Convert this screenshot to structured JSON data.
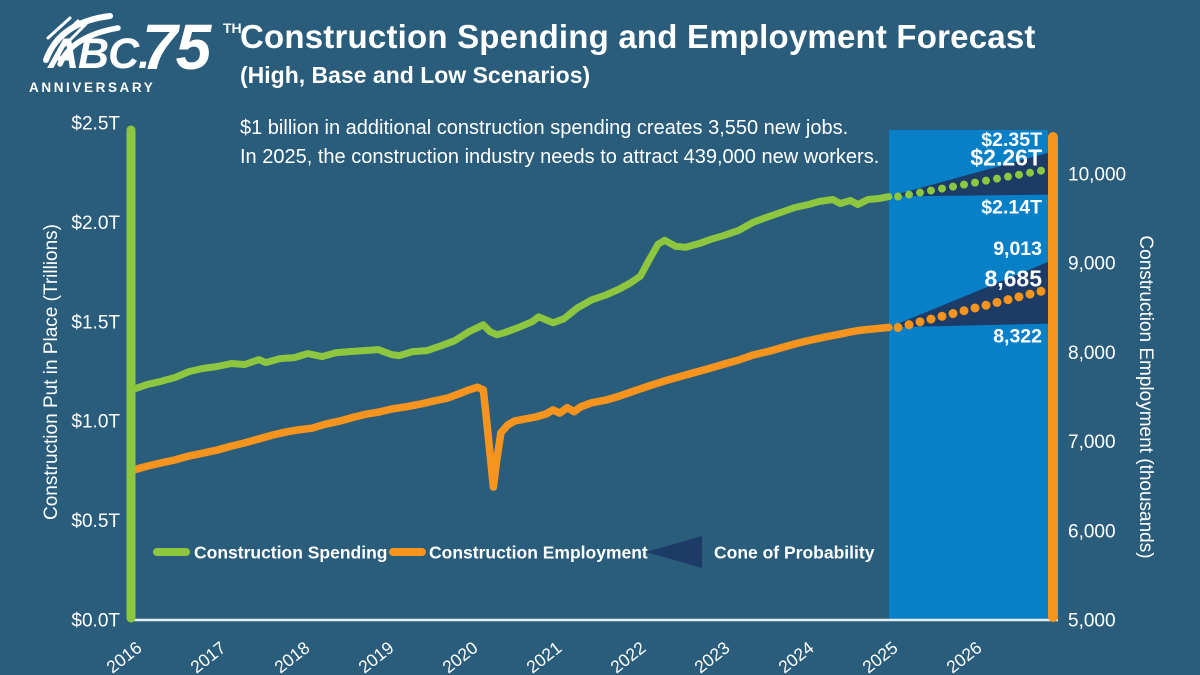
{
  "logo": {
    "abc": "ABC.",
    "number": "75",
    "suffix": "TH",
    "anniversary": "ANNIVERSARY"
  },
  "colors": {
    "background": "#2A5D7C",
    "forecast_region_blue": "#0780C8",
    "cone_navy": "#1C3B66",
    "spending_green": "#8DC63F",
    "employment_orange": "#F7941E",
    "axis_white": "#E6EDF2",
    "text_white": "#FFFFFF"
  },
  "chart_data": {
    "type": "line",
    "title": "Construction Spending and Employment Forecast",
    "subtitle": "(High, Base and Low Scenarios)",
    "annotations": [
      "$1 billion in additional construction spending creates 3,550 new jobs.",
      "In 2025, the construction industry needs to attract 439,000 new workers."
    ],
    "left_axis": {
      "label": "Construction Put in Place (Trillions)",
      "range": [
        0,
        2.5
      ],
      "ticks": [
        [
          0,
          "$0.0T"
        ],
        [
          0.5,
          "$0.5T"
        ],
        [
          1.0,
          "$1.0T"
        ],
        [
          1.5,
          "$1.5T"
        ],
        [
          2.0,
          "$2.0T"
        ],
        [
          2.5,
          "$2.5T"
        ]
      ]
    },
    "right_axis": {
      "label": "Construction Employment (thousands)",
      "range": [
        5000,
        10000
      ],
      "ticks": [
        [
          5000,
          "5,000"
        ],
        [
          6000,
          "6,000"
        ],
        [
          7000,
          "7,000"
        ],
        [
          8000,
          "8,000"
        ],
        [
          9000,
          "9,000"
        ],
        [
          10000,
          "10,000"
        ]
      ]
    },
    "x_axis": {
      "range": [
        2016,
        2026.9
      ],
      "ticks": [
        [
          2016,
          "2016"
        ],
        [
          2017,
          "2017"
        ],
        [
          2018,
          "2018"
        ],
        [
          2019,
          "2019"
        ],
        [
          2020,
          "2020"
        ],
        [
          2021,
          "2021"
        ],
        [
          2022,
          "2022"
        ],
        [
          2023,
          "2023"
        ],
        [
          2024,
          "2024"
        ],
        [
          2025,
          "2025"
        ],
        [
          2026,
          "2026"
        ]
      ]
    },
    "forecast_region": {
      "start": 2025,
      "end": 2026.9
    },
    "series": [
      {
        "name": "Construction Spending",
        "axis": "left",
        "color": "#8DC63F",
        "points": [
          [
            2016.0,
            1.16
          ],
          [
            2016.17,
            1.185
          ],
          [
            2016.33,
            1.2
          ],
          [
            2016.5,
            1.22
          ],
          [
            2016.67,
            1.25
          ],
          [
            2016.83,
            1.265
          ],
          [
            2017.0,
            1.275
          ],
          [
            2017.17,
            1.29
          ],
          [
            2017.33,
            1.285
          ],
          [
            2017.5,
            1.31
          ],
          [
            2017.58,
            1.295
          ],
          [
            2017.75,
            1.315
          ],
          [
            2017.92,
            1.32
          ],
          [
            2018.08,
            1.34
          ],
          [
            2018.25,
            1.325
          ],
          [
            2018.42,
            1.345
          ],
          [
            2018.58,
            1.35
          ],
          [
            2018.75,
            1.355
          ],
          [
            2018.92,
            1.36
          ],
          [
            2019.08,
            1.335
          ],
          [
            2019.17,
            1.33
          ],
          [
            2019.33,
            1.35
          ],
          [
            2019.5,
            1.355
          ],
          [
            2019.67,
            1.38
          ],
          [
            2019.83,
            1.405
          ],
          [
            2020.0,
            1.45
          ],
          [
            2020.17,
            1.485
          ],
          [
            2020.25,
            1.45
          ],
          [
            2020.33,
            1.435
          ],
          [
            2020.42,
            1.445
          ],
          [
            2020.58,
            1.47
          ],
          [
            2020.75,
            1.5
          ],
          [
            2020.83,
            1.525
          ],
          [
            2021.0,
            1.495
          ],
          [
            2021.13,
            1.515
          ],
          [
            2021.29,
            1.57
          ],
          [
            2021.46,
            1.61
          ],
          [
            2021.63,
            1.635
          ],
          [
            2021.79,
            1.665
          ],
          [
            2021.92,
            1.695
          ],
          [
            2022.04,
            1.73
          ],
          [
            2022.13,
            1.8
          ],
          [
            2022.25,
            1.89
          ],
          [
            2022.33,
            1.91
          ],
          [
            2022.46,
            1.88
          ],
          [
            2022.58,
            1.875
          ],
          [
            2022.75,
            1.895
          ],
          [
            2022.88,
            1.915
          ],
          [
            2023.04,
            1.935
          ],
          [
            2023.21,
            1.96
          ],
          [
            2023.38,
            2.0
          ],
          [
            2023.54,
            2.025
          ],
          [
            2023.71,
            2.05
          ],
          [
            2023.88,
            2.075
          ],
          [
            2024.04,
            2.09
          ],
          [
            2024.17,
            2.105
          ],
          [
            2024.33,
            2.115
          ],
          [
            2024.42,
            2.095
          ],
          [
            2024.54,
            2.11
          ],
          [
            2024.63,
            2.09
          ],
          [
            2024.75,
            2.115
          ],
          [
            2024.88,
            2.12
          ],
          [
            2025.0,
            2.13
          ]
        ]
      },
      {
        "name": "Construction Employment",
        "axis": "right",
        "color": "#F7941E",
        "points": [
          [
            2016.0,
            6680
          ],
          [
            2016.17,
            6725
          ],
          [
            2016.33,
            6760
          ],
          [
            2016.5,
            6795
          ],
          [
            2016.67,
            6840
          ],
          [
            2016.83,
            6870
          ],
          [
            2017.0,
            6905
          ],
          [
            2017.17,
            6950
          ],
          [
            2017.33,
            6985
          ],
          [
            2017.5,
            7030
          ],
          [
            2017.67,
            7075
          ],
          [
            2017.83,
            7110
          ],
          [
            2017.96,
            7130
          ],
          [
            2018.13,
            7150
          ],
          [
            2018.29,
            7195
          ],
          [
            2018.46,
            7230
          ],
          [
            2018.63,
            7275
          ],
          [
            2018.79,
            7310
          ],
          [
            2018.92,
            7330
          ],
          [
            2019.08,
            7365
          ],
          [
            2019.25,
            7390
          ],
          [
            2019.42,
            7420
          ],
          [
            2019.58,
            7455
          ],
          [
            2019.75,
            7490
          ],
          [
            2019.88,
            7535
          ],
          [
            2020.0,
            7580
          ],
          [
            2020.1,
            7610
          ],
          [
            2020.17,
            7580
          ],
          [
            2020.21,
            7240
          ],
          [
            2020.29,
            6490
          ],
          [
            2020.33,
            6790
          ],
          [
            2020.38,
            7100
          ],
          [
            2020.46,
            7185
          ],
          [
            2020.54,
            7230
          ],
          [
            2020.67,
            7255
          ],
          [
            2020.79,
            7275
          ],
          [
            2020.92,
            7310
          ],
          [
            2021.0,
            7355
          ],
          [
            2021.08,
            7320
          ],
          [
            2021.17,
            7380
          ],
          [
            2021.25,
            7335
          ],
          [
            2021.33,
            7390
          ],
          [
            2021.46,
            7435
          ],
          [
            2021.63,
            7465
          ],
          [
            2021.79,
            7510
          ],
          [
            2021.96,
            7565
          ],
          [
            2022.13,
            7620
          ],
          [
            2022.33,
            7680
          ],
          [
            2022.5,
            7725
          ],
          [
            2022.67,
            7770
          ],
          [
            2022.88,
            7825
          ],
          [
            2023.04,
            7870
          ],
          [
            2023.21,
            7915
          ],
          [
            2023.38,
            7970
          ],
          [
            2023.58,
            8015
          ],
          [
            2023.75,
            8060
          ],
          [
            2023.92,
            8105
          ],
          [
            2024.08,
            8140
          ],
          [
            2024.25,
            8175
          ],
          [
            2024.42,
            8205
          ],
          [
            2024.54,
            8230
          ],
          [
            2024.67,
            8250
          ],
          [
            2024.83,
            8265
          ],
          [
            2025.0,
            8280
          ]
        ]
      }
    ],
    "forecasts": [
      {
        "series": "Construction Spending",
        "axis": "left",
        "color": "#8DC63F",
        "dot_radius": 4,
        "start": [
          2025.0,
          2.13
        ],
        "high": 2.35,
        "base": 2.26,
        "low": 2.14,
        "labels": {
          "high": "$2.35T",
          "base": "$2.26T",
          "low": "$2.14T"
        }
      },
      {
        "series": "Construction Employment",
        "axis": "right",
        "color": "#F7941E",
        "dot_radius": 4.5,
        "start": [
          2025.0,
          8280
        ],
        "high": 9013,
        "base": 8685,
        "low": 8322,
        "labels": {
          "high": "9,013",
          "base": "8,685",
          "low": "8,322"
        }
      }
    ],
    "legend": [
      {
        "label": "Construction Spending",
        "swatch": "line",
        "color": "#8DC63F"
      },
      {
        "label": "Construction Employment",
        "swatch": "line",
        "color": "#F7941E"
      },
      {
        "label": "Cone of Probability",
        "swatch": "cone",
        "color": "#1C3B66"
      }
    ]
  }
}
